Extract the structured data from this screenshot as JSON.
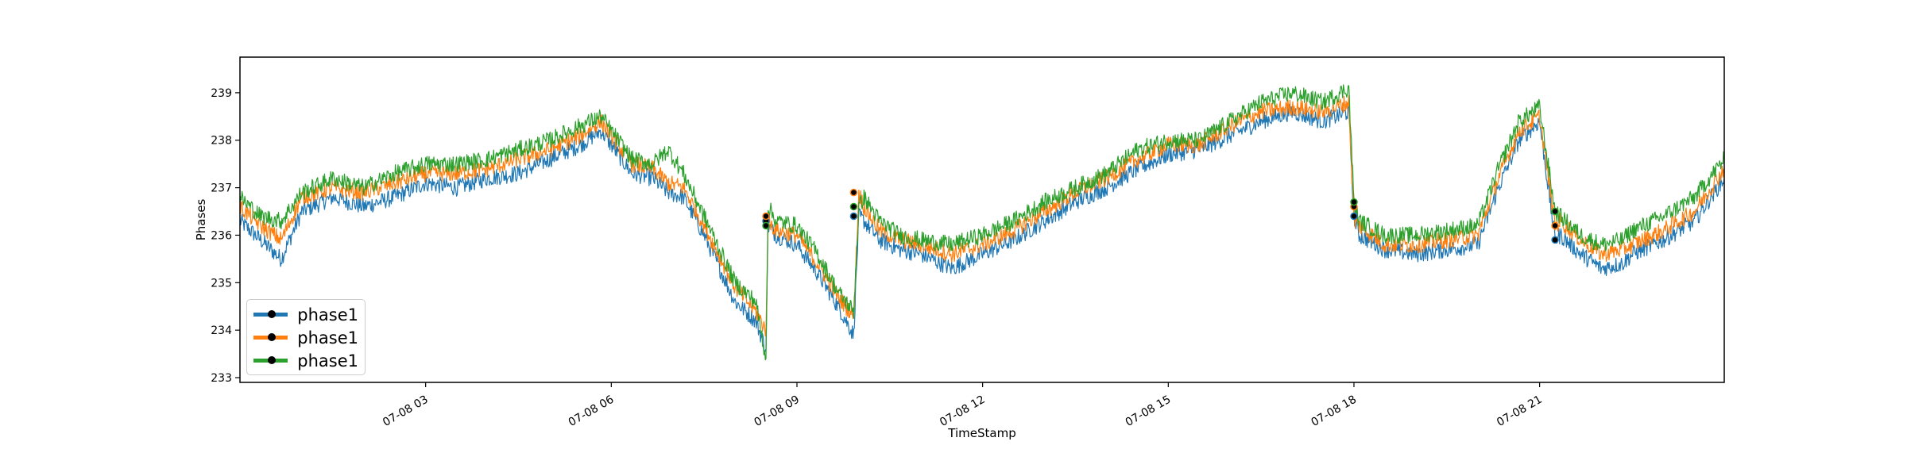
{
  "chart_data": {
    "type": "line",
    "xlabel": "TimeStamp",
    "ylabel": "Phases",
    "xlim": [
      "07-08 00:00",
      "07-08 23:59"
    ],
    "ylim": [
      232.9,
      239.75
    ],
    "x_ticks": [
      "07-08 03",
      "07-08 06",
      "07-08 09",
      "07-08 12",
      "07-08 15",
      "07-08 18",
      "07-08 21"
    ],
    "y_ticks": [
      233,
      234,
      235,
      236,
      237,
      238,
      239
    ],
    "legend_position": "lower-left",
    "colors": {
      "phase_a": "#1f77b4",
      "phase_b": "#ff7f0e",
      "phase_c": "#2ca02c",
      "markers": "#000000"
    },
    "series": [
      {
        "name": "phase1",
        "color": "#1f77b4",
        "x": [
          "00:00",
          "00:20",
          "00:40",
          "01:00",
          "01:30",
          "02:00",
          "02:30",
          "03:00",
          "03:30",
          "04:00",
          "04:30",
          "05:00",
          "05:30",
          "05:50",
          "06:00",
          "06:20",
          "06:40",
          "06:55",
          "07:10",
          "07:30",
          "08:00",
          "08:20",
          "08:30",
          "08:32",
          "08:40",
          "09:00",
          "09:20",
          "09:40",
          "09:55",
          "10:00",
          "10:05",
          "10:20",
          "10:40",
          "11:00",
          "11:30",
          "12:00",
          "12:30",
          "13:00",
          "13:30",
          "14:00",
          "14:30",
          "15:00",
          "15:30",
          "16:00",
          "16:30",
          "17:00",
          "17:30",
          "17:55",
          "18:00",
          "18:05",
          "18:30",
          "19:00",
          "19:30",
          "20:00",
          "20:20",
          "20:40",
          "21:00",
          "21:15",
          "21:20",
          "21:40",
          "22:00",
          "22:20",
          "22:30",
          "23:00",
          "23:30",
          "23:59"
        ],
        "values": [
          236.3,
          235.9,
          235.5,
          236.5,
          236.8,
          236.6,
          236.8,
          237.1,
          237.0,
          237.2,
          237.3,
          237.6,
          237.9,
          238.2,
          237.9,
          237.3,
          237.2,
          236.9,
          236.8,
          236.0,
          234.6,
          234.2,
          233.6,
          236.2,
          236.0,
          235.8,
          235.2,
          234.5,
          233.9,
          236.4,
          236.3,
          235.9,
          235.7,
          235.6,
          235.3,
          235.6,
          235.9,
          236.3,
          236.7,
          237.0,
          237.4,
          237.7,
          237.8,
          238.1,
          238.4,
          238.6,
          238.4,
          238.6,
          236.4,
          236.0,
          235.7,
          235.6,
          235.7,
          235.8,
          237.0,
          238.0,
          238.4,
          235.9,
          236.0,
          235.6,
          235.3,
          235.4,
          235.6,
          235.9,
          236.3,
          237.2
        ]
      },
      {
        "name": "phase1",
        "color": "#ff7f0e",
        "x": [
          "00:00",
          "00:20",
          "00:40",
          "01:00",
          "01:30",
          "02:00",
          "02:30",
          "03:00",
          "03:30",
          "04:00",
          "04:30",
          "05:00",
          "05:30",
          "05:50",
          "06:00",
          "06:20",
          "06:40",
          "06:55",
          "07:10",
          "07:30",
          "08:00",
          "08:20",
          "08:30",
          "08:32",
          "08:40",
          "09:00",
          "09:20",
          "09:40",
          "09:55",
          "10:00",
          "10:05",
          "10:20",
          "10:40",
          "11:00",
          "11:30",
          "12:00",
          "12:30",
          "13:00",
          "13:30",
          "14:00",
          "14:30",
          "15:00",
          "15:30",
          "16:00",
          "16:30",
          "17:00",
          "17:30",
          "17:55",
          "18:00",
          "18:05",
          "18:30",
          "19:00",
          "19:30",
          "20:00",
          "20:20",
          "20:40",
          "21:00",
          "21:15",
          "21:20",
          "21:40",
          "22:00",
          "22:20",
          "22:30",
          "23:00",
          "23:30",
          "23:59"
        ],
        "values": [
          236.6,
          236.2,
          235.9,
          236.8,
          237.0,
          236.9,
          237.1,
          237.3,
          237.3,
          237.4,
          237.6,
          237.8,
          238.1,
          238.4,
          238.1,
          237.5,
          237.4,
          237.1,
          237.0,
          236.2,
          234.9,
          234.4,
          234.0,
          236.3,
          236.1,
          236.0,
          235.4,
          234.7,
          234.3,
          236.9,
          236.6,
          236.1,
          235.9,
          235.8,
          235.6,
          235.8,
          236.1,
          236.5,
          236.9,
          237.2,
          237.6,
          237.9,
          237.9,
          238.3,
          238.6,
          238.7,
          238.6,
          238.8,
          236.3,
          236.2,
          235.8,
          235.8,
          235.9,
          236.0,
          237.2,
          238.2,
          238.5,
          236.2,
          236.3,
          235.9,
          235.6,
          235.7,
          235.8,
          236.1,
          236.5,
          237.4
        ]
      },
      {
        "name": "phase1",
        "color": "#2ca02c",
        "x": [
          "00:00",
          "00:20",
          "00:40",
          "01:00",
          "01:30",
          "02:00",
          "02:30",
          "03:00",
          "03:30",
          "04:00",
          "04:30",
          "05:00",
          "05:30",
          "05:50",
          "06:00",
          "06:20",
          "06:40",
          "06:55",
          "07:10",
          "07:30",
          "08:00",
          "08:20",
          "08:30",
          "08:32",
          "08:40",
          "09:00",
          "09:20",
          "09:40",
          "09:55",
          "10:00",
          "10:05",
          "10:20",
          "10:40",
          "11:00",
          "11:30",
          "12:00",
          "12:30",
          "13:00",
          "13:30",
          "14:00",
          "14:30",
          "15:00",
          "15:30",
          "16:00",
          "16:30",
          "17:00",
          "17:30",
          "17:55",
          "18:00",
          "18:05",
          "18:30",
          "19:00",
          "19:30",
          "20:00",
          "20:20",
          "20:40",
          "21:00",
          "21:15",
          "21:20",
          "21:40",
          "22:00",
          "22:20",
          "22:30",
          "23:00",
          "23:30",
          "23:59"
        ],
        "values": [
          236.8,
          236.4,
          236.3,
          236.9,
          237.2,
          237.0,
          237.3,
          237.5,
          237.5,
          237.6,
          237.8,
          238.0,
          238.3,
          238.5,
          238.2,
          237.6,
          237.5,
          237.8,
          237.3,
          236.4,
          235.0,
          234.6,
          233.4,
          236.6,
          236.3,
          236.2,
          235.6,
          234.8,
          234.4,
          236.6,
          236.8,
          236.3,
          236.0,
          235.9,
          235.8,
          236.0,
          236.3,
          236.7,
          237.0,
          237.3,
          237.8,
          238.0,
          238.0,
          238.4,
          238.8,
          239.0,
          238.8,
          239.1,
          236.7,
          236.3,
          236.0,
          236.0,
          236.1,
          236.2,
          237.4,
          238.4,
          238.7,
          236.5,
          236.4,
          236.0,
          235.8,
          235.9,
          236.1,
          236.4,
          236.8,
          237.6
        ]
      }
    ],
    "markers": [
      {
        "x": "08:30",
        "values": [
          236.3,
          236.4,
          236.2
        ]
      },
      {
        "x": "09:55",
        "values": [
          236.4,
          236.9,
          236.6
        ]
      },
      {
        "x": "18:00",
        "values": [
          236.4,
          236.6,
          236.7
        ]
      },
      {
        "x": "21:15",
        "values": [
          235.9,
          236.2,
          236.5
        ]
      }
    ]
  }
}
